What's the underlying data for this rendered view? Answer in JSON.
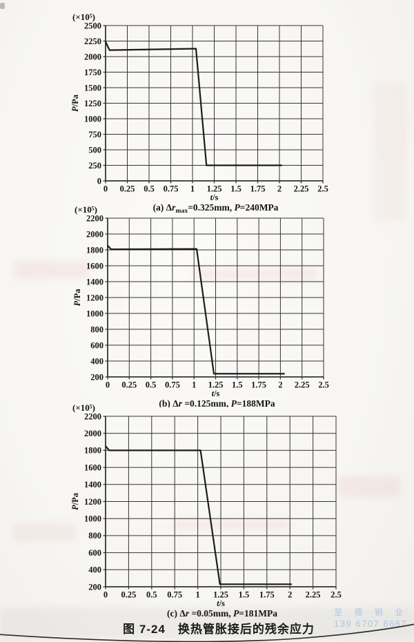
{
  "page": {
    "figure_caption": "图 7-24　换热管胀接后的残余应力",
    "watermark": {
      "line1": "至 德 钢 业",
      "line2": "139 6707 6667",
      "color": "#a3c1e3"
    },
    "paper_color": "#f7f6f3",
    "line_color": "#1b1b1b"
  },
  "chart_data": [
    {
      "id": "a",
      "type": "line",
      "unit_label": "(×10⁵)",
      "ylabel_segments": [
        {
          "t": "P",
          "i": true
        },
        {
          "t": "/Pa"
        }
      ],
      "xlabel_segments": [
        {
          "t": "t",
          "i": true
        },
        {
          "t": "/s"
        }
      ],
      "caption_segments": [
        {
          "t": "(a) Δ"
        },
        {
          "t": "r",
          "i": true
        },
        {
          "t": "max",
          "sub": true
        },
        {
          "t": "=0.325mm, "
        },
        {
          "t": "P",
          "i": true
        },
        {
          "t": "=240MPa"
        }
      ],
      "xlim": [
        0,
        2.5
      ],
      "ylim": [
        0,
        2500
      ],
      "x_tick_labels": [
        "0",
        "0.25",
        "0.5",
        "0.75",
        "1",
        "1.25",
        "1.5",
        "1.75",
        "2",
        "2.25",
        "2.5"
      ],
      "y_tick_labels": [
        "0",
        "250",
        "500",
        "750",
        "1000",
        "1250",
        "1500",
        "1750",
        "2000",
        "2250",
        "2500"
      ],
      "grid": true,
      "series": [
        {
          "name": "residual-pressure",
          "points": [
            [
              0,
              2240
            ],
            [
              0.045,
              2105
            ],
            [
              1.04,
              2128
            ],
            [
              1.16,
              250
            ],
            [
              2.03,
              250
            ]
          ]
        }
      ]
    },
    {
      "id": "b",
      "type": "line",
      "unit_label": "(×10⁵)",
      "ylabel_segments": [
        {
          "t": "P",
          "i": true
        },
        {
          "t": "/Pa"
        }
      ],
      "xlabel_segments": [
        {
          "t": "t",
          "i": true
        },
        {
          "t": "/s"
        }
      ],
      "caption_segments": [
        {
          "t": "(b) Δ"
        },
        {
          "t": "r",
          "i": true
        },
        {
          "t": " =0.125mm, "
        },
        {
          "t": "P",
          "i": true
        },
        {
          "t": "=188MPa"
        }
      ],
      "xlim": [
        0,
        2.5
      ],
      "ylim": [
        200,
        2200
      ],
      "x_tick_labels": [
        "0",
        "0.25",
        "0.5",
        "0.75",
        "1",
        "1.25",
        "1.5",
        "1.75",
        "2",
        "2.25",
        "2.5"
      ],
      "y_tick_labels": [
        "200",
        "400",
        "600",
        "800",
        "1000",
        "1200",
        "1400",
        "1600",
        "1800",
        "2000",
        "2200"
      ],
      "grid": true,
      "series": [
        {
          "name": "residual-pressure",
          "points": [
            [
              0,
              1855
            ],
            [
              0.04,
              1808
            ],
            [
              1.03,
              1812
            ],
            [
              1.23,
              240
            ],
            [
              2.05,
              240
            ]
          ]
        }
      ]
    },
    {
      "id": "c",
      "type": "line",
      "unit_label": "(×10⁵)",
      "ylabel_segments": [
        {
          "t": "P",
          "i": true
        },
        {
          "t": "/Pa"
        }
      ],
      "xlabel_segments": [
        {
          "t": "t",
          "i": true
        },
        {
          "t": "/s"
        }
      ],
      "caption_segments": [
        {
          "t": "(c) Δ"
        },
        {
          "t": "r",
          "i": true
        },
        {
          "t": " =0.05mm, "
        },
        {
          "t": "P",
          "i": true
        },
        {
          "t": "=181MPa"
        }
      ],
      "xlim": [
        0,
        2.5
      ],
      "ylim": [
        200,
        2200
      ],
      "x_tick_labels": [
        "0",
        "0.25",
        "0.5",
        "0.75",
        "1",
        "1.25",
        "1.5",
        "1.75",
        "2",
        "2.25",
        "2.5"
      ],
      "y_tick_labels": [
        "200",
        "400",
        "600",
        "800",
        "1000",
        "1200",
        "1400",
        "1600",
        "1800",
        "2000",
        "2200"
      ],
      "grid": true,
      "series": [
        {
          "name": "residual-pressure",
          "points": [
            [
              0,
              1850
            ],
            [
              0.04,
              1800
            ],
            [
              1.03,
              1800
            ],
            [
              1.24,
              230
            ],
            [
              2.02,
              230
            ]
          ]
        }
      ]
    }
  ]
}
